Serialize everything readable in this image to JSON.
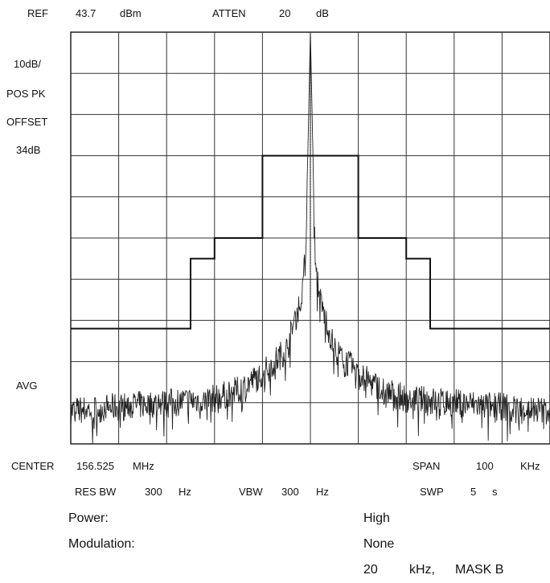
{
  "header": {
    "ref_label": "REF",
    "ref_value": "43.7",
    "ref_unit": "dBm",
    "atten_label": "ATTEN",
    "atten_value": "20",
    "atten_unit": "dB"
  },
  "left_labels": {
    "scale": "10dB/",
    "detector": "POS PK",
    "offset_label": "OFFSET",
    "offset_value": "34dB",
    "avg": "AVG"
  },
  "footer": {
    "center_label": "CENTER",
    "center_value": "156.525",
    "center_unit": "MHz",
    "span_label": "SPAN",
    "span_value": "100",
    "span_unit": "KHz",
    "resbw_label": "RES BW",
    "resbw_value": "300",
    "resbw_unit": "Hz",
    "vbw_label": "VBW",
    "vbw_value": "300",
    "vbw_unit": "Hz",
    "swp_label": "SWP",
    "swp_value": "5",
    "swp_unit": "s"
  },
  "info": {
    "power_label": "Power:",
    "power_value": "High",
    "modulation_label": "Modulation:",
    "modulation_value": "None",
    "mask_value": "20",
    "mask_unit": "kHz,",
    "mask_name": "MASK B"
  },
  "chart_data": {
    "type": "line",
    "x_unit": "kHz",
    "y_unit": "dBm",
    "xlim": [
      -50,
      50
    ],
    "ylim": [
      -56.3,
      43.7
    ],
    "grid": true,
    "grid_divisions": {
      "x": 10,
      "y": 10
    },
    "mask": {
      "x": [
        -50,
        -25,
        -25,
        -20,
        -20,
        -10,
        -10,
        10,
        10,
        20,
        20,
        25,
        25,
        50
      ],
      "y": [
        -28.3,
        -28.3,
        -11.3,
        -11.3,
        -6.3,
        -6.3,
        13.7,
        13.7,
        -6.3,
        -6.3,
        -11.3,
        -11.3,
        -28.3,
        -28.3
      ]
    },
    "trace_profile": {
      "x": [
        -50,
        -40,
        -30,
        -20,
        -15,
        -10,
        -5,
        -2,
        -1,
        0,
        1,
        2,
        5,
        10,
        15,
        20,
        30,
        40,
        50
      ],
      "y": [
        -48.3,
        -47.3,
        -46.3,
        -45.3,
        -43.3,
        -39.3,
        -33.3,
        -21.3,
        -11.3,
        43.7,
        -11.3,
        -21.3,
        -33.3,
        -39.3,
        -43.3,
        -45.3,
        -46.3,
        -47.3,
        -48.3
      ]
    },
    "colors": {
      "trace": "#222222",
      "grid": "#333333",
      "mask": "#111111"
    }
  }
}
